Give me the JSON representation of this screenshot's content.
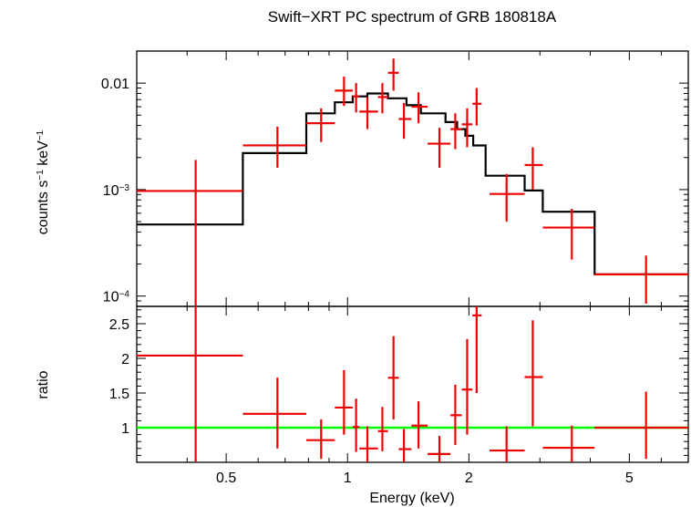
{
  "title": "Swift−XRT PC spectrum of GRB 180818A",
  "colors": {
    "model": "#000000",
    "data": "#ee0000",
    "unity": "#00ff00",
    "axes": "#000000"
  },
  "chart_data": [
    {
      "type": "step-spectrum",
      "panel": "top",
      "ylabel_parts": [
        "counts s",
        "−1",
        " keV",
        "−1"
      ],
      "yscale": "log",
      "xscale": "log",
      "xlim": [
        0.3,
        7.0
      ],
      "ylim": [
        8e-05,
        0.02
      ],
      "ytick_labels": [
        {
          "value": 0.01,
          "base": "0.01",
          "exp": ""
        },
        {
          "value": 0.001,
          "base": "10",
          "exp": "−3"
        },
        {
          "value": 0.0001,
          "base": "10",
          "exp": "−4"
        }
      ],
      "model_steps": [
        {
          "x0": 0.3,
          "x1": 0.55,
          "y": 0.00047
        },
        {
          "x0": 0.55,
          "x1": 0.79,
          "y": 0.0022
        },
        {
          "x0": 0.79,
          "x1": 0.93,
          "y": 0.0052
        },
        {
          "x0": 0.93,
          "x1": 1.03,
          "y": 0.0066
        },
        {
          "x0": 1.03,
          "x1": 1.12,
          "y": 0.0075
        },
        {
          "x0": 1.12,
          "x1": 1.26,
          "y": 0.008
        },
        {
          "x0": 1.26,
          "x1": 1.4,
          "y": 0.0072
        },
        {
          "x0": 1.4,
          "x1": 1.52,
          "y": 0.0062
        },
        {
          "x0": 1.52,
          "x1": 1.75,
          "y": 0.0052
        },
        {
          "x0": 1.75,
          "x1": 1.87,
          "y": 0.0043
        },
        {
          "x0": 1.87,
          "x1": 1.96,
          "y": 0.0037
        },
        {
          "x0": 1.96,
          "x1": 2.05,
          "y": 0.0032
        },
        {
          "x0": 2.05,
          "x1": 2.2,
          "y": 0.0026
        },
        {
          "x0": 2.2,
          "x1": 2.75,
          "y": 0.00135
        },
        {
          "x0": 2.75,
          "x1": 3.05,
          "y": 0.00098
        },
        {
          "x0": 3.05,
          "x1": 4.1,
          "y": 0.00062
        },
        {
          "x0": 4.1,
          "x1": 7.0,
          "y": 0.00016
        }
      ],
      "data_points": [
        {
          "x": 0.42,
          "xlo": 0.3,
          "xhi": 0.55,
          "y": 0.00097,
          "ylo": 8e-05,
          "yhi": 0.0019
        },
        {
          "x": 0.67,
          "xlo": 0.55,
          "xhi": 0.79,
          "y": 0.0026,
          "ylo": 0.0016,
          "yhi": 0.0039
        },
        {
          "x": 0.86,
          "xlo": 0.79,
          "xhi": 0.93,
          "y": 0.0042,
          "ylo": 0.0028,
          "yhi": 0.0058
        },
        {
          "x": 0.98,
          "xlo": 0.93,
          "xhi": 1.03,
          "y": 0.0085,
          "ylo": 0.0061,
          "yhi": 0.0115
        },
        {
          "x": 1.05,
          "xlo": 1.03,
          "xhi": 1.07,
          "y": 0.0075,
          "ylo": 0.0053,
          "yhi": 0.01
        },
        {
          "x": 1.12,
          "xlo": 1.07,
          "xhi": 1.19,
          "y": 0.0054,
          "ylo": 0.0037,
          "yhi": 0.0074
        },
        {
          "x": 1.22,
          "xlo": 1.19,
          "xhi": 1.26,
          "y": 0.0074,
          "ylo": 0.0052,
          "yhi": 0.01
        },
        {
          "x": 1.3,
          "xlo": 1.26,
          "xhi": 1.34,
          "y": 0.0125,
          "ylo": 0.0085,
          "yhi": 0.017
        },
        {
          "x": 1.38,
          "xlo": 1.34,
          "xhi": 1.44,
          "y": 0.0046,
          "ylo": 0.003,
          "yhi": 0.0065
        },
        {
          "x": 1.5,
          "xlo": 1.44,
          "xhi": 1.58,
          "y": 0.006,
          "ylo": 0.0042,
          "yhi": 0.0082
        },
        {
          "x": 1.69,
          "xlo": 1.58,
          "xhi": 1.8,
          "y": 0.0027,
          "ylo": 0.0016,
          "yhi": 0.0038
        },
        {
          "x": 1.85,
          "xlo": 1.8,
          "xhi": 1.92,
          "y": 0.0037,
          "ylo": 0.0024,
          "yhi": 0.0052
        },
        {
          "x": 1.98,
          "xlo": 1.92,
          "xhi": 2.04,
          "y": 0.0041,
          "ylo": 0.0025,
          "yhi": 0.0058
        },
        {
          "x": 2.09,
          "xlo": 2.04,
          "xhi": 2.15,
          "y": 0.0064,
          "ylo": 0.004,
          "yhi": 0.009
        },
        {
          "x": 2.48,
          "xlo": 2.25,
          "xhi": 2.75,
          "y": 0.00091,
          "ylo": 0.0005,
          "yhi": 0.0014
        },
        {
          "x": 2.88,
          "xlo": 2.75,
          "xhi": 3.05,
          "y": 0.0017,
          "ylo": 0.001,
          "yhi": 0.0025
        },
        {
          "x": 3.6,
          "xlo": 3.05,
          "xhi": 4.1,
          "y": 0.00044,
          "ylo": 0.00022,
          "yhi": 0.00066
        },
        {
          "x": 5.5,
          "xlo": 4.1,
          "xhi": 7.0,
          "y": 0.00016,
          "ylo": 8.5e-05,
          "yhi": 0.00024
        }
      ]
    },
    {
      "type": "ratio",
      "panel": "bottom",
      "ylabel": "ratio",
      "xlabel": "Energy (keV)",
      "xscale": "log",
      "xlim": [
        0.3,
        7.0
      ],
      "ylim": [
        0.5,
        2.75
      ],
      "ytick_labels": [
        "1",
        "1.5",
        "2",
        "2.5"
      ],
      "xtick_labels": [
        "0.5",
        "1",
        "2",
        "5"
      ],
      "unity_line": 1.0,
      "data_points": [
        {
          "x": 0.42,
          "xlo": 0.3,
          "xhi": 0.55,
          "y": 2.04,
          "ylo": 0.5,
          "yhi": 3.0
        },
        {
          "x": 0.67,
          "xlo": 0.55,
          "xhi": 0.79,
          "y": 1.2,
          "ylo": 0.7,
          "yhi": 1.72
        },
        {
          "x": 0.86,
          "xlo": 0.79,
          "xhi": 0.93,
          "y": 0.82,
          "ylo": 0.55,
          "yhi": 1.12
        },
        {
          "x": 0.98,
          "xlo": 0.93,
          "xhi": 1.03,
          "y": 1.29,
          "ylo": 0.9,
          "yhi": 1.83
        },
        {
          "x": 1.05,
          "xlo": 1.03,
          "xhi": 1.07,
          "y": 1.01,
          "ylo": 0.65,
          "yhi": 1.42
        },
        {
          "x": 1.12,
          "xlo": 1.07,
          "xhi": 1.19,
          "y": 0.7,
          "ylo": 0.5,
          "yhi": 1.02
        },
        {
          "x": 1.22,
          "xlo": 1.19,
          "xhi": 1.26,
          "y": 0.95,
          "ylo": 0.66,
          "yhi": 1.3
        },
        {
          "x": 1.3,
          "xlo": 1.26,
          "xhi": 1.34,
          "y": 1.72,
          "ylo": 1.12,
          "yhi": 2.32
        },
        {
          "x": 1.38,
          "xlo": 1.34,
          "xhi": 1.44,
          "y": 0.69,
          "ylo": 0.48,
          "yhi": 0.98
        },
        {
          "x": 1.5,
          "xlo": 1.44,
          "xhi": 1.58,
          "y": 1.03,
          "ylo": 0.7,
          "yhi": 1.38
        },
        {
          "x": 1.69,
          "xlo": 1.58,
          "xhi": 1.8,
          "y": 0.62,
          "ylo": 0.42,
          "yhi": 0.88
        },
        {
          "x": 1.85,
          "xlo": 1.8,
          "xhi": 1.92,
          "y": 1.18,
          "ylo": 0.75,
          "yhi": 1.62
        },
        {
          "x": 1.98,
          "xlo": 1.92,
          "xhi": 2.04,
          "y": 1.55,
          "ylo": 0.9,
          "yhi": 2.28
        },
        {
          "x": 2.09,
          "xlo": 2.04,
          "xhi": 2.15,
          "y": 2.62,
          "ylo": 1.5,
          "yhi": 2.75
        },
        {
          "x": 2.48,
          "xlo": 2.25,
          "xhi": 2.75,
          "y": 0.67,
          "ylo": 0.4,
          "yhi": 1.02
        },
        {
          "x": 2.88,
          "xlo": 2.75,
          "xhi": 3.05,
          "y": 1.73,
          "ylo": 1.02,
          "yhi": 2.55
        },
        {
          "x": 3.6,
          "xlo": 3.05,
          "xhi": 4.1,
          "y": 0.71,
          "ylo": 0.38,
          "yhi": 1.03
        },
        {
          "x": 5.5,
          "xlo": 4.1,
          "xhi": 7.0,
          "y": 1.0,
          "ylo": 0.55,
          "yhi": 1.52
        }
      ]
    }
  ]
}
